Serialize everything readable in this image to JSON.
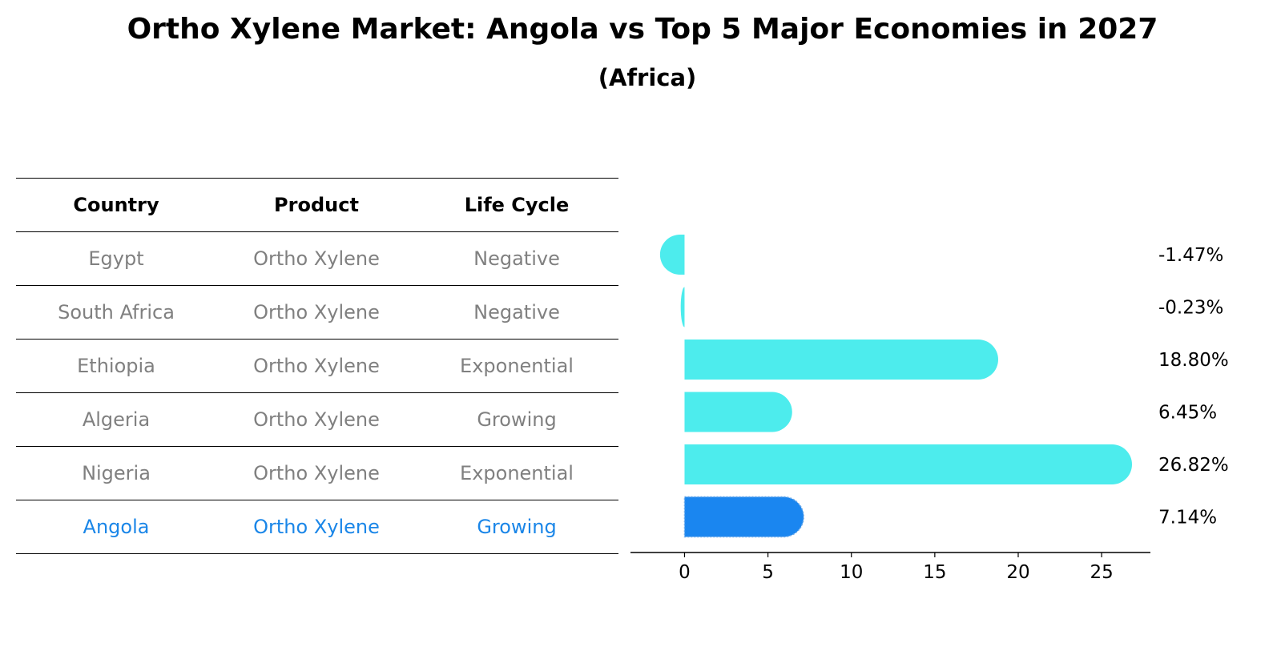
{
  "title": "Ortho Xylene Market: Angola vs Top 5 Major Economies in 2027",
  "subtitle": "(Africa)",
  "table": {
    "headers": [
      "Country",
      "Product",
      "Life Cycle"
    ],
    "rows": [
      [
        "Egypt",
        "Ortho Xylene",
        "Negative"
      ],
      [
        "South Africa",
        "Ortho Xylene",
        "Negative"
      ],
      [
        "Ethiopia",
        "Ortho Xylene",
        "Exponential"
      ],
      [
        "Algeria",
        "Ortho Xylene",
        "Growing"
      ],
      [
        "Nigeria",
        "Ortho Xylene",
        "Exponential"
      ],
      [
        "Angola",
        "Ortho Xylene",
        "Growing"
      ]
    ],
    "highlight_row": 5
  },
  "colors": {
    "bar": "#4deced",
    "highlight": "#1a86f0",
    "highlight_text": "#1a86e8",
    "muted_text": "#808080"
  },
  "chart_data": {
    "type": "bar",
    "orientation": "horizontal",
    "categories": [
      "Egypt",
      "South Africa",
      "Ethiopia",
      "Algeria",
      "Nigeria",
      "Angola"
    ],
    "values": [
      -1.47,
      -0.23,
      18.8,
      6.45,
      26.82,
      7.14
    ],
    "value_labels": [
      "-1.47%",
      "-0.23%",
      "18.80%",
      "6.45%",
      "26.82%",
      "7.14%"
    ],
    "highlight_index": 5,
    "xlim": [
      -3,
      28.5
    ],
    "xticks": [
      0,
      5,
      10,
      15,
      20,
      25
    ],
    "grid": false
  }
}
